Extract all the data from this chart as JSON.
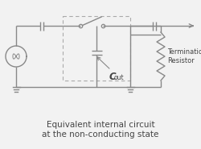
{
  "bg_color": "#f2f2f2",
  "line_color": "#888888",
  "dashed_color": "#aaaaaa",
  "text_color": "#444444",
  "title_text": "Equivalent internal circuit\nat the non-conducting state",
  "cout_label": "C",
  "cout_sub": "out",
  "resistor_label": "Termination\nResistor",
  "lw": 1.0,
  "fig_width": 2.5,
  "fig_height": 1.85,
  "dpi": 100
}
